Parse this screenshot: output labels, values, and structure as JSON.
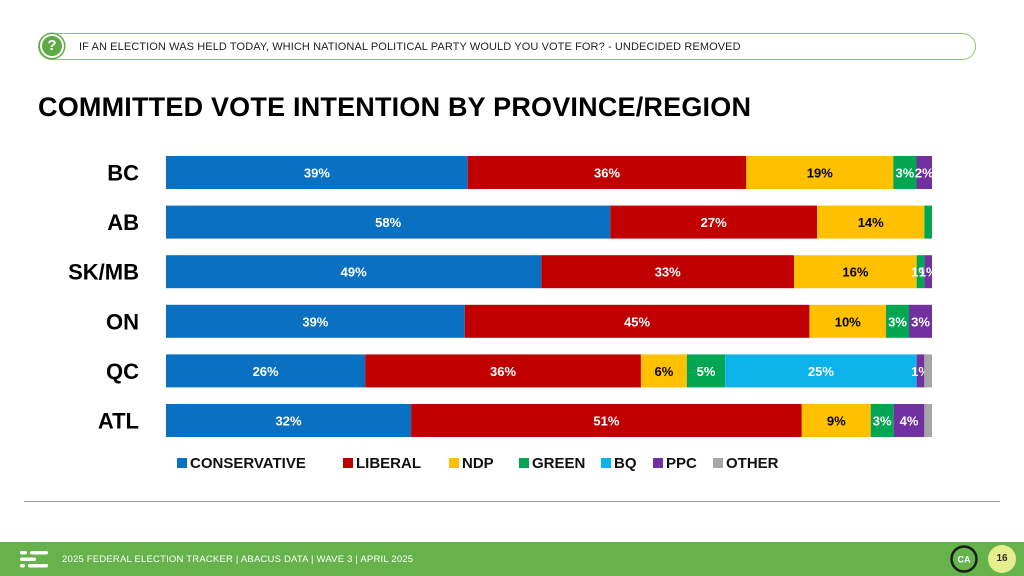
{
  "question": "IF AN ELECTION WAS HELD TODAY, WHICH NATIONAL POLITICAL PARTY WOULD YOU VOTE FOR? - UNDECIDED REMOVED",
  "title": "COMMITTED VOTE INTENTION BY PROVINCE/REGION",
  "footer": {
    "text": "2025 FEDERAL ELECTION TRACKER  |  ABACUS DATA  |  WAVE 3  |  APRIL 2025",
    "page_number": "16",
    "brand_mark": "CA"
  },
  "colors": {
    "conservative": "#0a70c2",
    "liberal": "#c00000",
    "ndp": "#ffc000",
    "green": "#00a651",
    "bq": "#0db2ea",
    "ppc": "#7030a0",
    "other": "#a6a6a6",
    "accent": "#66b24b"
  },
  "chart_data": {
    "type": "bar",
    "orientation": "horizontal",
    "stacked": true,
    "categories": [
      "BC",
      "AB",
      "SK/MB",
      "ON",
      "QC",
      "ATL"
    ],
    "series": [
      {
        "name": "CONSERVATIVE",
        "color": "#0a70c2",
        "values": [
          39,
          58,
          49,
          39,
          26,
          32
        ],
        "labels": [
          "39%",
          "58%",
          "49%",
          "39%",
          "26%",
          "32%"
        ]
      },
      {
        "name": "LIBERAL",
        "color": "#c00000",
        "values": [
          36,
          27,
          33,
          45,
          36,
          51
        ],
        "labels": [
          "36%",
          "27%",
          "33%",
          "45%",
          "36%",
          "51%"
        ]
      },
      {
        "name": "NDP",
        "color": "#ffc000",
        "values": [
          19,
          14,
          16,
          10,
          6,
          9
        ],
        "labels": [
          "19%",
          "14%",
          "16%",
          "10%",
          "6%",
          "9%"
        ]
      },
      {
        "name": "GREEN",
        "color": "#00a651",
        "values": [
          3,
          1,
          1,
          3,
          5,
          3
        ],
        "labels": [
          "3%",
          "",
          "1%",
          "3%",
          "5%",
          "3%"
        ]
      },
      {
        "name": "BQ",
        "color": "#0db2ea",
        "values": [
          0,
          0,
          0,
          0,
          25,
          0
        ],
        "labels": [
          "",
          "",
          "",
          "",
          "25%",
          ""
        ]
      },
      {
        "name": "PPC",
        "color": "#7030a0",
        "values": [
          2,
          0,
          1,
          3,
          1,
          4
        ],
        "labels": [
          "2%",
          "",
          "1%",
          "3%",
          "1%",
          "4%"
        ]
      },
      {
        "name": "OTHER",
        "color": "#a6a6a6",
        "values": [
          0,
          0,
          0,
          0,
          1,
          1
        ],
        "labels": [
          "",
          "",
          "",
          "",
          "",
          ""
        ]
      }
    ],
    "xlim": [
      0,
      100
    ],
    "legend_position": "bottom",
    "grid": false
  }
}
